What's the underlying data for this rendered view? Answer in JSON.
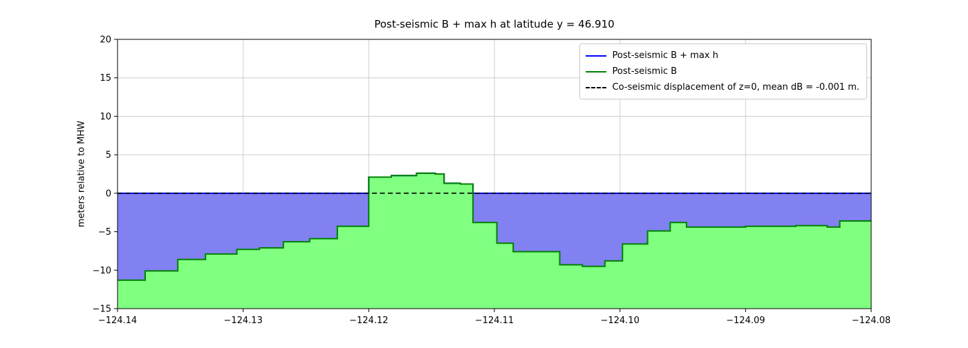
{
  "chart_data": {
    "type": "area-step",
    "title": "Post-seismic B + max h at latitude y = 46.910",
    "xlabel": "",
    "ylabel": "meters relative to MHW",
    "xlim": [
      -124.14,
      -124.08
    ],
    "ylim": [
      -15,
      20
    ],
    "grid": true,
    "legend_position": "upper right",
    "xticks": [
      -124.14,
      -124.13,
      -124.12,
      -124.11,
      -124.1,
      -124.09,
      -124.08
    ],
    "xtick_labels": [
      "−124.14",
      "−124.13",
      "−124.12",
      "−124.11",
      "−124.10",
      "−124.09",
      "−124.08"
    ],
    "yticks": [
      -15,
      -10,
      -5,
      0,
      5,
      10,
      15,
      20
    ],
    "ytick_labels": [
      "−15",
      "−10",
      "−5",
      "0",
      "5",
      "10",
      "15",
      "20"
    ],
    "x_edges": [
      -124.14,
      -124.1378,
      -124.1352,
      -124.133,
      -124.1305,
      -124.1287,
      -124.1268,
      -124.1247,
      -124.1225,
      -124.12,
      -124.1182,
      -124.1162,
      -124.1147,
      -124.114,
      -124.1127,
      -124.1117,
      -124.1098,
      -124.1085,
      -124.1048,
      -124.103,
      -124.1012,
      -124.0998,
      -124.0978,
      -124.096,
      -124.0947,
      -124.09,
      -124.086,
      -124.0835,
      -124.0825,
      -124.08
    ],
    "B_values": [
      -11.3,
      -10.1,
      -8.6,
      -7.9,
      -7.3,
      -7.1,
      -6.3,
      -5.9,
      -4.3,
      2.1,
      2.3,
      2.6,
      2.5,
      1.3,
      1.2,
      -3.8,
      -6.5,
      -7.6,
      -9.3,
      -9.5,
      -8.8,
      -6.6,
      -4.9,
      -3.8,
      -4.4,
      -4.3,
      -4.2,
      -4.4,
      -3.6
    ],
    "series": [
      {
        "name": "Post-seismic B + max h",
        "rule": "max(B,0)",
        "color": "#0000ff",
        "fill": "#8181f2"
      },
      {
        "name": "Post-seismic B",
        "color": "#008000",
        "fill": "#80ff80"
      }
    ],
    "zero_line": {
      "name": "Co-seismic displacement of z=0, mean dB = -0.001 m.",
      "y": 0,
      "color": "#000000",
      "style": "dashed"
    },
    "legend": [
      "Post-seismic B + max h",
      "Post-seismic B",
      "Co-seismic displacement of z=0, mean dB = -0.001 m."
    ],
    "colors": {
      "grid": "#cfcfcf",
      "axes": "#000000"
    }
  }
}
